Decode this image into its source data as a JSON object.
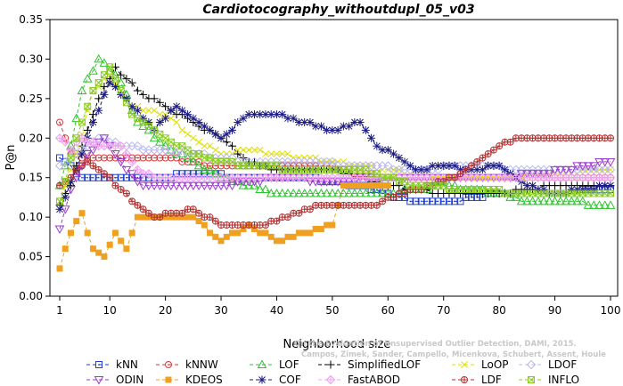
{
  "chart_data": {
    "type": "line",
    "title": "Cardiotocography_withoutdupl_05_v03",
    "xlabel": "Neighborhood size",
    "ylabel": "P@n",
    "xlim": [
      1,
      100
    ],
    "ylim": [
      0,
      0.35
    ],
    "xticks": [
      "1",
      "10",
      "20",
      "30",
      "40",
      "50",
      "60",
      "70",
      "80",
      "90",
      "100"
    ],
    "yticks": [
      "0.00",
      "0.05",
      "0.10",
      "0.15",
      "0.20",
      "0.25",
      "0.30",
      "0.35"
    ],
    "grid": false,
    "legend_position": "bottom",
    "watermark": [
      "Campos, Zimek, Sander, Campello, Micenkova, Schubert, Assent, Houle",
      "On the Evaluation of Unsupervised Outlier Detection, DAMI, 2015."
    ],
    "series": [
      {
        "name": "kNN",
        "color": "#1f3fd0",
        "marker": "square-dot",
        "key": [
          [
            1,
            0.175
          ],
          [
            3,
            0.163
          ],
          [
            5,
            0.15
          ],
          [
            10,
            0.15
          ],
          [
            18,
            0.15
          ],
          [
            25,
            0.155
          ],
          [
            35,
            0.15
          ],
          [
            45,
            0.15
          ],
          [
            55,
            0.14
          ],
          [
            60,
            0.128
          ],
          [
            65,
            0.12
          ],
          [
            72,
            0.12
          ],
          [
            80,
            0.13
          ],
          [
            90,
            0.13
          ],
          [
            100,
            0.135
          ]
        ]
      },
      {
        "name": "kNNW",
        "color": "#d63a3a",
        "marker": "circle-dot",
        "key": [
          [
            1,
            0.222
          ],
          [
            3,
            0.18
          ],
          [
            6,
            0.175
          ],
          [
            10,
            0.175
          ],
          [
            15,
            0.175
          ],
          [
            20,
            0.175
          ],
          [
            25,
            0.17
          ],
          [
            30,
            0.163
          ],
          [
            40,
            0.163
          ],
          [
            50,
            0.163
          ],
          [
            55,
            0.155
          ],
          [
            60,
            0.15
          ],
          [
            70,
            0.15
          ],
          [
            80,
            0.15
          ],
          [
            90,
            0.15
          ],
          [
            100,
            0.15
          ]
        ]
      },
      {
        "name": "LOF",
        "color": "#2dc42d",
        "marker": "triangle-up",
        "key": [
          [
            1,
            0.14
          ],
          [
            3,
            0.19
          ],
          [
            5,
            0.26
          ],
          [
            8,
            0.3
          ],
          [
            12,
            0.27
          ],
          [
            15,
            0.22
          ],
          [
            20,
            0.19
          ],
          [
            25,
            0.17
          ],
          [
            30,
            0.15
          ],
          [
            35,
            0.14
          ],
          [
            40,
            0.13
          ],
          [
            50,
            0.13
          ],
          [
            60,
            0.13
          ],
          [
            70,
            0.14
          ],
          [
            80,
            0.13
          ],
          [
            85,
            0.12
          ],
          [
            90,
            0.12
          ],
          [
            100,
            0.115
          ]
        ]
      },
      {
        "name": "SimplifiedLOF",
        "color": "#000000",
        "marker": "plus",
        "key": [
          [
            1,
            0.115
          ],
          [
            3,
            0.14
          ],
          [
            5,
            0.19
          ],
          [
            8,
            0.25
          ],
          [
            11,
            0.29
          ],
          [
            15,
            0.26
          ],
          [
            20,
            0.24
          ],
          [
            25,
            0.22
          ],
          [
            30,
            0.2
          ],
          [
            35,
            0.17
          ],
          [
            40,
            0.16
          ],
          [
            50,
            0.16
          ],
          [
            60,
            0.14
          ],
          [
            70,
            0.13
          ],
          [
            80,
            0.13
          ],
          [
            90,
            0.14
          ],
          [
            100,
            0.14
          ]
        ]
      },
      {
        "name": "LoOP",
        "color": "#e0e000",
        "marker": "x",
        "key": [
          [
            1,
            0.12
          ],
          [
            4,
            0.18
          ],
          [
            7,
            0.26
          ],
          [
            10,
            0.28
          ],
          [
            14,
            0.24
          ],
          [
            20,
            0.23
          ],
          [
            25,
            0.2
          ],
          [
            30,
            0.18
          ],
          [
            35,
            0.185
          ],
          [
            40,
            0.18
          ],
          [
            50,
            0.17
          ],
          [
            60,
            0.16
          ],
          [
            70,
            0.15
          ],
          [
            80,
            0.15
          ],
          [
            90,
            0.155
          ],
          [
            100,
            0.16
          ]
        ]
      },
      {
        "name": "LDOF",
        "color": "#b8b8ee",
        "marker": "diamond",
        "key": [
          [
            1,
            0.165
          ],
          [
            4,
            0.18
          ],
          [
            8,
            0.2
          ],
          [
            12,
            0.19
          ],
          [
            18,
            0.185
          ],
          [
            25,
            0.18
          ],
          [
            35,
            0.17
          ],
          [
            45,
            0.17
          ],
          [
            55,
            0.165
          ],
          [
            65,
            0.16
          ],
          [
            75,
            0.165
          ],
          [
            85,
            0.16
          ],
          [
            100,
            0.16
          ]
        ]
      },
      {
        "name": "ODIN",
        "color": "#9a3ad0",
        "marker": "triangle-down",
        "key": [
          [
            1,
            0.085
          ],
          [
            3,
            0.135
          ],
          [
            6,
            0.18
          ],
          [
            9,
            0.2
          ],
          [
            13,
            0.16
          ],
          [
            16,
            0.14
          ],
          [
            22,
            0.14
          ],
          [
            30,
            0.14
          ],
          [
            40,
            0.15
          ],
          [
            50,
            0.145
          ],
          [
            60,
            0.15
          ],
          [
            70,
            0.15
          ],
          [
            80,
            0.15
          ],
          [
            90,
            0.158
          ],
          [
            100,
            0.17
          ]
        ]
      },
      {
        "name": "KDEOS",
        "color": "#f0a020",
        "marker": "square-fill",
        "key": [
          [
            1,
            0.035
          ],
          [
            3,
            0.08
          ],
          [
            5,
            0.105
          ],
          [
            7,
            0.06
          ],
          [
            9,
            0.05
          ],
          [
            11,
            0.08
          ],
          [
            13,
            0.06
          ],
          [
            15,
            0.1
          ],
          [
            20,
            0.1
          ],
          [
            25,
            0.1
          ],
          [
            30,
            0.07
          ],
          [
            35,
            0.09
          ],
          [
            40,
            0.07
          ],
          [
            45,
            0.08
          ],
          [
            50,
            0.09
          ],
          [
            52,
            0.14
          ],
          [
            60,
            0.14
          ]
        ]
      },
      {
        "name": "COF",
        "color": "#1a1a80",
        "marker": "asterisk",
        "key": [
          [
            1,
            0.11
          ],
          [
            4,
            0.16
          ],
          [
            7,
            0.22
          ],
          [
            10,
            0.27
          ],
          [
            14,
            0.24
          ],
          [
            18,
            0.21
          ],
          [
            22,
            0.24
          ],
          [
            26,
            0.22
          ],
          [
            30,
            0.2
          ],
          [
            35,
            0.23
          ],
          [
            40,
            0.23
          ],
          [
            45,
            0.22
          ],
          [
            50,
            0.21
          ],
          [
            55,
            0.22
          ],
          [
            58,
            0.19
          ],
          [
            62,
            0.175
          ],
          [
            65,
            0.16
          ],
          [
            70,
            0.165
          ],
          [
            75,
            0.16
          ],
          [
            80,
            0.165
          ],
          [
            85,
            0.14
          ],
          [
            90,
            0.13
          ],
          [
            100,
            0.14
          ]
        ]
      },
      {
        "name": "FastABOD",
        "color": "#f0a0f0",
        "marker": "diamond-plus",
        "key": [
          [
            1,
            0.2
          ],
          [
            3,
            0.185
          ],
          [
            5,
            0.2
          ],
          [
            8,
            0.19
          ],
          [
            12,
            0.19
          ],
          [
            15,
            0.16
          ],
          [
            18,
            0.15
          ],
          [
            25,
            0.15
          ],
          [
            32,
            0.15
          ],
          [
            40,
            0.15
          ],
          [
            50,
            0.15
          ],
          [
            60,
            0.15
          ],
          [
            70,
            0.15
          ],
          [
            80,
            0.15
          ],
          [
            90,
            0.15
          ],
          [
            100,
            0.15
          ]
        ]
      },
      {
        "name": "LDF",
        "color": "#b03030",
        "marker": "circle-plus",
        "key": [
          [
            1,
            0.14
          ],
          [
            6,
            0.17
          ],
          [
            10,
            0.15
          ],
          [
            14,
            0.12
          ],
          [
            18,
            0.1
          ],
          [
            25,
            0.11
          ],
          [
            30,
            0.09
          ],
          [
            38,
            0.09
          ],
          [
            48,
            0.115
          ],
          [
            58,
            0.115
          ],
          [
            62,
            0.13
          ],
          [
            68,
            0.14
          ],
          [
            72,
            0.15
          ],
          [
            76,
            0.17
          ],
          [
            80,
            0.19
          ],
          [
            83,
            0.2
          ],
          [
            90,
            0.2
          ],
          [
            100,
            0.2
          ]
        ]
      },
      {
        "name": "INFLO",
        "color": "#88cc22",
        "marker": "square-x",
        "key": [
          [
            1,
            0.12
          ],
          [
            4,
            0.2
          ],
          [
            7,
            0.26
          ],
          [
            10,
            0.29
          ],
          [
            14,
            0.23
          ],
          [
            20,
            0.2
          ],
          [
            25,
            0.18
          ],
          [
            30,
            0.17
          ],
          [
            35,
            0.165
          ],
          [
            45,
            0.16
          ],
          [
            55,
            0.16
          ],
          [
            65,
            0.14
          ],
          [
            75,
            0.135
          ],
          [
            85,
            0.13
          ],
          [
            100,
            0.13
          ]
        ]
      }
    ]
  }
}
